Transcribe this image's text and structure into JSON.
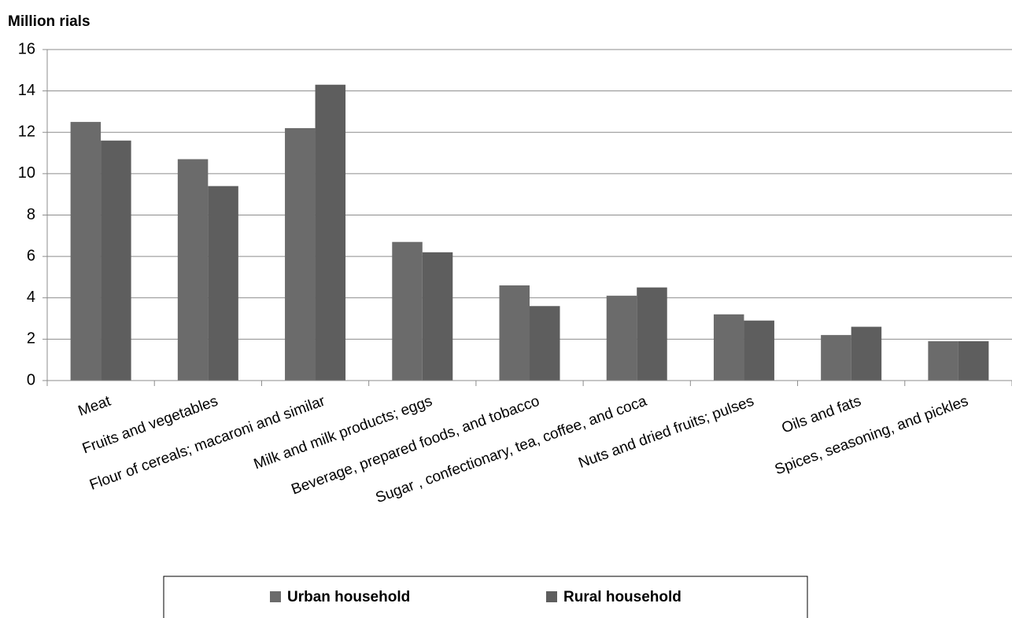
{
  "chart_data": {
    "type": "bar",
    "y_label": "Million rials",
    "categories": [
      "Meat",
      "Fruits and vegetables",
      "Flour of cereals; macaroni and similar",
      "Milk and milk products; eggs",
      "Beverage, prepared foods, and tobacco",
      "Sugar , confectionary, tea, coffee, and coca",
      "Nuts and dried fruits; pulses",
      "Oils and fats",
      "Spices, seasoning, and pickles"
    ],
    "series": [
      {
        "name": "Urban household",
        "color": "#6b6b6b",
        "values": [
          12.5,
          10.7,
          12.2,
          6.7,
          4.6,
          4.1,
          3.2,
          2.2,
          1.9
        ]
      },
      {
        "name": "Rural household",
        "color": "#5e5e5e",
        "values": [
          11.6,
          9.4,
          14.3,
          6.2,
          3.6,
          4.5,
          2.9,
          2.6,
          1.9
        ]
      }
    ],
    "ylim": [
      0,
      16
    ],
    "yticks": [
      0,
      2,
      4,
      6,
      8,
      10,
      12,
      14,
      16
    ],
    "grid": true
  }
}
